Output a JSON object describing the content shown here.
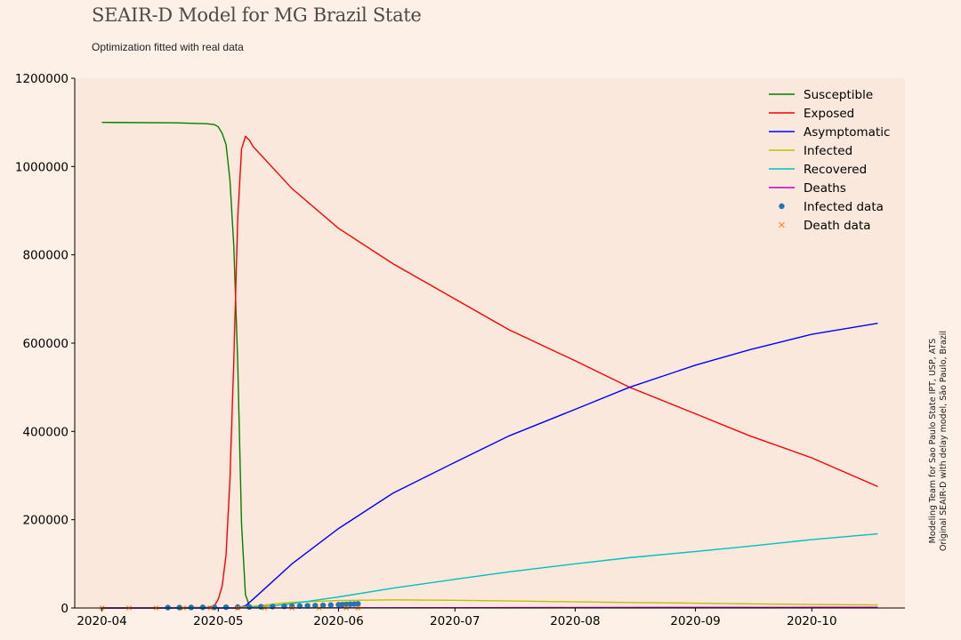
{
  "header": {
    "title": "SEAIR-D Model for MG Brazil State",
    "subtitle": "Optimization fitted with real data"
  },
  "side_note": {
    "line1": "Modeling Team for Sao Paulo State IPT, USP, ATS",
    "line2": "Original SEAIR-D with delay model, São Paulo, Brazil"
  },
  "colors": {
    "figure_background": "#fdf0e6",
    "plot_background": "#fae8dc"
  },
  "chart_data": {
    "type": "line",
    "title": "SEAIR-D Model for MG Brazil State",
    "subtitle": "Optimization fitted with real data",
    "xlabel": "",
    "ylabel": "",
    "xlim": [
      "2020-03-25",
      "2020-10-25"
    ],
    "ylim": [
      0,
      1200000
    ],
    "x_ticks": [
      "2020-04-01",
      "2020-05-01",
      "2020-06-01",
      "2020-07-01",
      "2020-08-01",
      "2020-09-01",
      "2020-10-01"
    ],
    "x_tick_labels": [
      "2020-04",
      "2020-05",
      "2020-06",
      "2020-07",
      "2020-08",
      "2020-09",
      "2020-10"
    ],
    "y_ticks": [
      0,
      200000,
      400000,
      600000,
      800000,
      1000000,
      1200000
    ],
    "y_tick_labels": [
      "0",
      "200000",
      "400000",
      "600000",
      "800000",
      "1000000",
      "1200000"
    ],
    "grid": false,
    "legend_position": "top-right",
    "series": [
      {
        "name": "Susceptible",
        "kind": "line",
        "color": "#008000",
        "x": [
          "2020-04-01",
          "2020-04-20",
          "2020-04-28",
          "2020-04-30",
          "2020-05-01",
          "2020-05-02",
          "2020-05-03",
          "2020-05-04",
          "2020-05-05",
          "2020-05-06",
          "2020-05-07",
          "2020-05-08",
          "2020-05-09",
          "2020-05-10",
          "2020-05-12"
        ],
        "y": [
          1100000,
          1099000,
          1097000,
          1095000,
          1090000,
          1075000,
          1050000,
          970000,
          820000,
          560000,
          190000,
          30000,
          6000,
          2000,
          1000
        ]
      },
      {
        "name": "Exposed",
        "kind": "line",
        "color": "#ff0000",
        "x": [
          "2020-04-01",
          "2020-04-28",
          "2020-04-30",
          "2020-05-01",
          "2020-05-02",
          "2020-05-03",
          "2020-05-04",
          "2020-05-05",
          "2020-05-06",
          "2020-05-07",
          "2020-05-08",
          "2020-05-09",
          "2020-05-10",
          "2020-05-20",
          "2020-06-01",
          "2020-06-15",
          "2020-07-01",
          "2020-07-15",
          "2020-08-01",
          "2020-08-15",
          "2020-09-01",
          "2020-09-15",
          "2020-10-01",
          "2020-10-18"
        ],
        "y": [
          0,
          1000,
          5000,
          20000,
          50000,
          120000,
          290000,
          560000,
          880000,
          1040000,
          1068000,
          1060000,
          1045000,
          950000,
          860000,
          780000,
          700000,
          630000,
          560000,
          500000,
          440000,
          390000,
          340000,
          275000
        ]
      },
      {
        "name": "Asymptomatic",
        "kind": "line",
        "color": "#0000ff",
        "x": [
          "2020-04-01",
          "2020-05-06",
          "2020-05-08",
          "2020-05-10",
          "2020-05-15",
          "2020-05-20",
          "2020-06-01",
          "2020-06-15",
          "2020-07-01",
          "2020-07-15",
          "2020-08-01",
          "2020-08-15",
          "2020-09-01",
          "2020-09-15",
          "2020-10-01",
          "2020-10-18"
        ],
        "y": [
          0,
          0,
          5000,
          20000,
          60000,
          100000,
          180000,
          260000,
          330000,
          390000,
          450000,
          500000,
          550000,
          585000,
          620000,
          645000
        ]
      },
      {
        "name": "Infected",
        "kind": "line",
        "color": "#bfbf00",
        "x": [
          "2020-04-01",
          "2020-05-05",
          "2020-05-10",
          "2020-05-15",
          "2020-05-20",
          "2020-06-01",
          "2020-06-15",
          "2020-07-01",
          "2020-07-15",
          "2020-08-01",
          "2020-08-15",
          "2020-09-01",
          "2020-09-15",
          "2020-10-01",
          "2020-10-18"
        ],
        "y": [
          0,
          500,
          4000,
          9000,
          13000,
          17000,
          18500,
          17500,
          16000,
          14000,
          12500,
          11000,
          9500,
          8000,
          7000
        ]
      },
      {
        "name": "Recovered",
        "kind": "line",
        "color": "#00bfbf",
        "x": [
          "2020-04-01",
          "2020-05-08",
          "2020-05-15",
          "2020-05-20",
          "2020-06-01",
          "2020-06-15",
          "2020-07-01",
          "2020-07-15",
          "2020-08-01",
          "2020-08-15",
          "2020-09-01",
          "2020-09-15",
          "2020-10-01",
          "2020-10-18"
        ],
        "y": [
          0,
          500,
          5000,
          10000,
          25000,
          45000,
          65000,
          82000,
          100000,
          114000,
          128000,
          140000,
          155000,
          168000
        ]
      },
      {
        "name": "Deaths",
        "kind": "line",
        "color": "#bf00bf",
        "x": [
          "2020-04-01",
          "2020-05-15",
          "2020-06-01",
          "2020-07-01",
          "2020-08-01",
          "2020-09-01",
          "2020-10-01",
          "2020-10-18"
        ],
        "y": [
          0,
          100,
          300,
          700,
          1000,
          1300,
          1500,
          1600
        ]
      },
      {
        "name": "Infected data",
        "kind": "scatter",
        "marker": "circle",
        "color": "#1f77b4",
        "x": [
          "2020-04-18",
          "2020-04-21",
          "2020-04-24",
          "2020-04-27",
          "2020-04-30",
          "2020-05-03",
          "2020-05-06",
          "2020-05-09",
          "2020-05-12",
          "2020-05-15",
          "2020-05-18",
          "2020-05-20",
          "2020-05-22",
          "2020-05-24",
          "2020-05-26",
          "2020-05-28",
          "2020-05-30",
          "2020-06-01",
          "2020-06-02",
          "2020-06-03",
          "2020-06-04",
          "2020-06-05",
          "2020-06-06"
        ],
        "y": [
          1000,
          1100,
          1300,
          1500,
          1700,
          1900,
          2100,
          2400,
          2800,
          3200,
          3700,
          4100,
          4500,
          5000,
          5500,
          6000,
          6600,
          7300,
          7700,
          8100,
          8600,
          9000,
          9500
        ]
      },
      {
        "name": "Death data",
        "kind": "scatter",
        "marker": "x",
        "color": "#ff7f0e",
        "x": [
          "2020-04-01",
          "2020-04-08",
          "2020-04-15",
          "2020-04-22",
          "2020-04-29",
          "2020-05-06",
          "2020-05-13",
          "2020-05-20",
          "2020-05-27",
          "2020-06-03",
          "2020-06-06"
        ],
        "y": [
          0,
          5,
          15,
          25,
          35,
          50,
          70,
          100,
          140,
          200,
          230
        ]
      }
    ]
  }
}
